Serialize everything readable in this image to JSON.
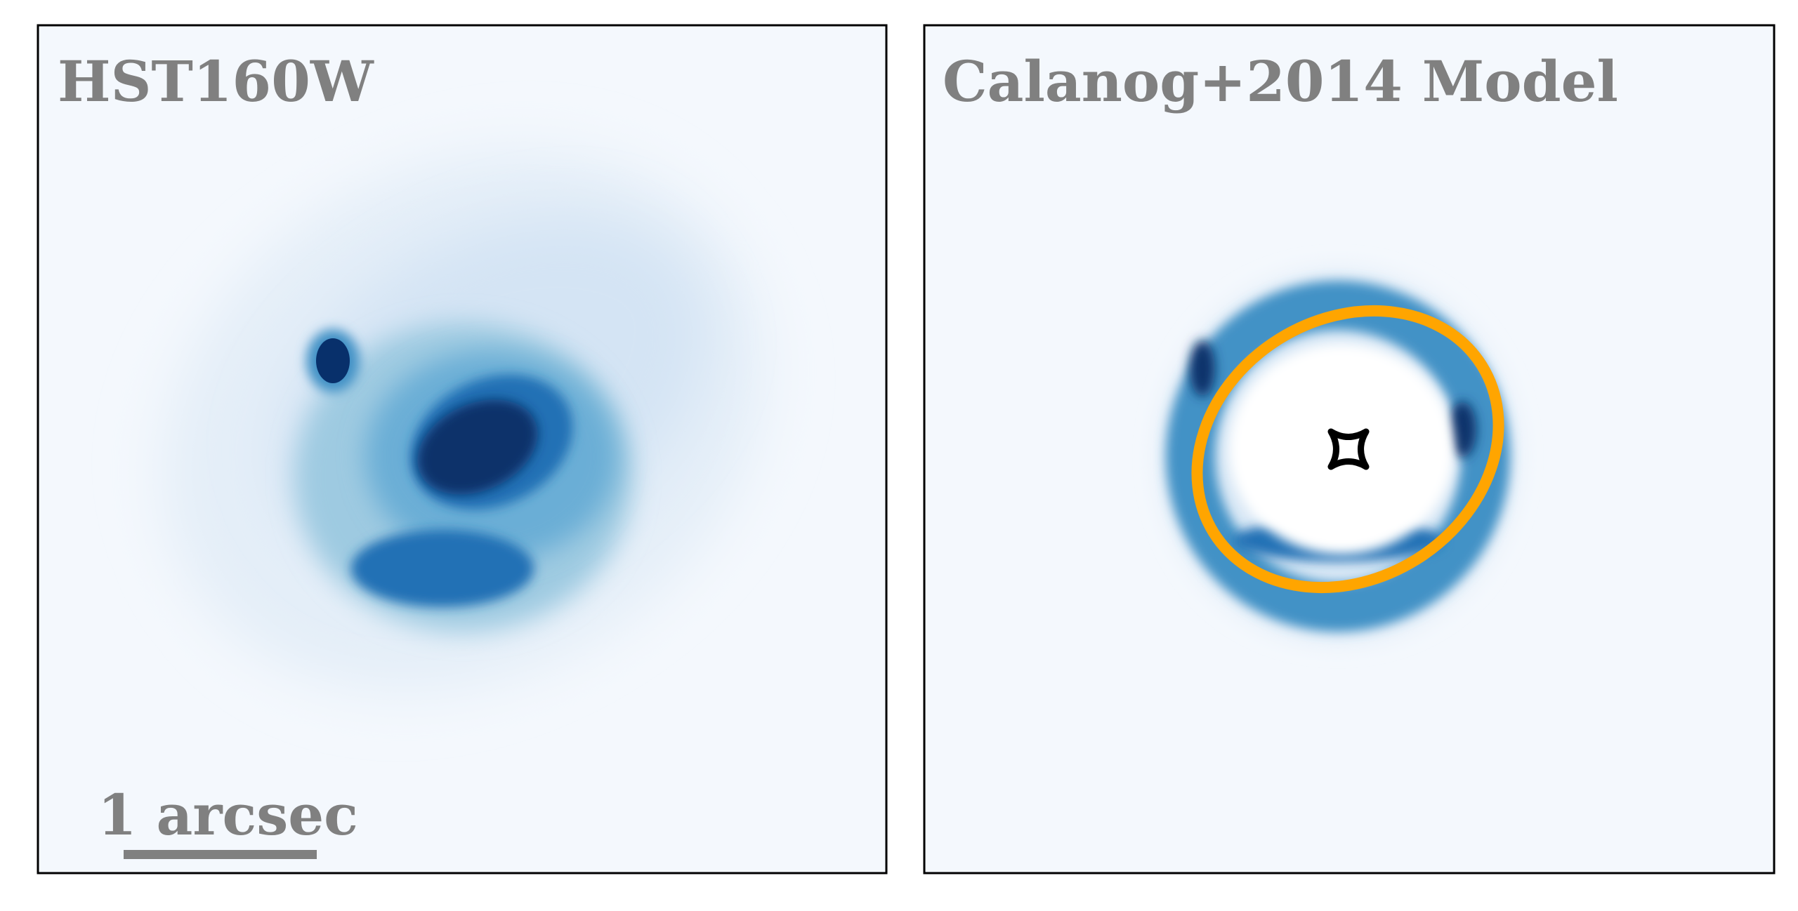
{
  "panels": [
    {
      "title": "HST160W",
      "scalebar_label": "1 arcsec"
    },
    {
      "title": "Calanog+2014 Model"
    }
  ]
}
